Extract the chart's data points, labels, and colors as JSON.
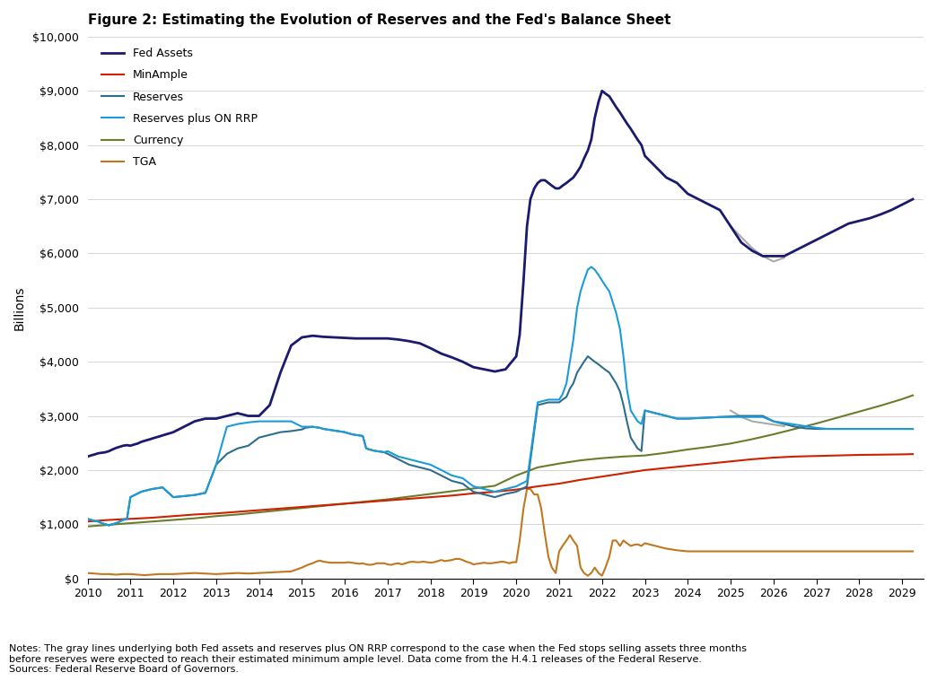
{
  "title": "Figure 2: Estimating the Evolution of Reserves and the Fed's Balance Sheet",
  "ylabel": "Billions",
  "ylim": [
    0,
    10000
  ],
  "yticks": [
    0,
    1000,
    2000,
    3000,
    4000,
    5000,
    6000,
    7000,
    8000,
    9000,
    10000
  ],
  "ytick_labels": [
    "$0",
    "$1,000",
    "$2,000",
    "$3,000",
    "$4,000",
    "$5,000",
    "$6,000",
    "$7,000",
    "$8,000",
    "$9,000",
    "$10,000"
  ],
  "xlim": [
    2010,
    2029.5
  ],
  "xticks": [
    2010,
    2011,
    2012,
    2013,
    2014,
    2015,
    2016,
    2017,
    2018,
    2019,
    2020,
    2021,
    2022,
    2023,
    2024,
    2025,
    2026,
    2027,
    2028,
    2029
  ],
  "notes": "Notes: The gray lines underlying both Fed assets and reserves plus ON RRP correspond to the case when the Fed stops selling assets three months\nbefore reserves were expected to reach their estimated minimum ample level. Data come from the H.4.1 releases of the Federal Reserve.\nSources: Federal Reserve Board of Governors.",
  "series": {
    "fed_assets": {
      "label": "Fed Assets",
      "color": "#1a1a6e",
      "linewidth": 2.0,
      "x": [
        2010.0,
        2010.08,
        2010.17,
        2010.25,
        2010.33,
        2010.42,
        2010.5,
        2010.58,
        2010.67,
        2010.75,
        2010.83,
        2010.92,
        2011.0,
        2011.08,
        2011.17,
        2011.25,
        2011.33,
        2011.42,
        2011.5,
        2011.58,
        2011.67,
        2011.75,
        2011.83,
        2011.92,
        2012.0,
        2012.25,
        2012.5,
        2012.75,
        2013.0,
        2013.25,
        2013.5,
        2013.75,
        2014.0,
        2014.25,
        2014.5,
        2014.75,
        2015.0,
        2015.25,
        2015.5,
        2015.75,
        2016.0,
        2016.25,
        2016.5,
        2016.75,
        2017.0,
        2017.25,
        2017.5,
        2017.75,
        2018.0,
        2018.25,
        2018.5,
        2018.75,
        2019.0,
        2019.25,
        2019.5,
        2019.75,
        2020.0,
        2020.08,
        2020.17,
        2020.25,
        2020.33,
        2020.42,
        2020.5,
        2020.58,
        2020.67,
        2020.75,
        2020.83,
        2020.92,
        2021.0,
        2021.08,
        2021.17,
        2021.25,
        2021.33,
        2021.42,
        2021.5,
        2021.58,
        2021.67,
        2021.75,
        2021.83,
        2021.92,
        2022.0,
        2022.08,
        2022.17,
        2022.25,
        2022.33,
        2022.42,
        2022.5,
        2022.58,
        2022.67,
        2022.75,
        2022.83,
        2022.92,
        2023.0,
        2023.25,
        2023.5,
        2023.75,
        2024.0,
        2024.25,
        2024.5,
        2024.75,
        2025.0,
        2025.25,
        2025.5,
        2025.75,
        2026.25,
        2026.5,
        2026.75,
        2027.0,
        2027.25,
        2027.5,
        2027.75,
        2028.0,
        2028.25,
        2028.5,
        2028.75,
        2029.0,
        2029.25
      ],
      "y": [
        2250,
        2270,
        2290,
        2310,
        2320,
        2330,
        2350,
        2380,
        2410,
        2430,
        2450,
        2460,
        2450,
        2470,
        2490,
        2520,
        2540,
        2560,
        2580,
        2600,
        2620,
        2640,
        2660,
        2680,
        2700,
        2800,
        2900,
        2950,
        2950,
        3000,
        3050,
        3000,
        3000,
        3200,
        3800,
        4300,
        4450,
        4480,
        4460,
        4450,
        4440,
        4430,
        4430,
        4430,
        4430,
        4410,
        4380,
        4340,
        4250,
        4150,
        4080,
        4000,
        3900,
        3860,
        3820,
        3860,
        4100,
        4500,
        5500,
        6500,
        7000,
        7200,
        7300,
        7350,
        7350,
        7300,
        7250,
        7200,
        7200,
        7250,
        7300,
        7350,
        7400,
        7500,
        7600,
        7750,
        7900,
        8100,
        8500,
        8800,
        9000,
        8950,
        8900,
        8800,
        8700,
        8600,
        8500,
        8400,
        8300,
        8200,
        8100,
        8000,
        7800,
        7600,
        7400,
        7300,
        7100,
        7000,
        6900,
        6800,
        6500,
        6200,
        6050,
        5950,
        5950,
        6050,
        6150,
        6250,
        6350,
        6450,
        6550,
        6600,
        6650,
        6720,
        6800,
        6900,
        7000
      ]
    },
    "fed_assets_gray": {
      "color": "#aaaaaa",
      "linewidth": 1.5,
      "x": [
        2025.0,
        2025.25,
        2025.5,
        2025.75,
        2026.0,
        2026.25
      ],
      "y": [
        6500,
        6300,
        6100,
        5950,
        5850,
        5920
      ]
    },
    "minample": {
      "label": "MinAmple",
      "color": "#cc2200",
      "linewidth": 1.5,
      "x": [
        2010.0,
        2010.5,
        2011.0,
        2011.5,
        2012.0,
        2012.5,
        2013.0,
        2013.5,
        2014.0,
        2014.5,
        2015.0,
        2015.5,
        2016.0,
        2016.5,
        2017.0,
        2017.5,
        2018.0,
        2018.5,
        2019.0,
        2019.5,
        2020.0,
        2020.5,
        2021.0,
        2021.5,
        2022.0,
        2022.5,
        2023.0,
        2023.5,
        2024.0,
        2024.5,
        2025.0,
        2025.5,
        2026.0,
        2026.5,
        2027.0,
        2027.5,
        2028.0,
        2028.5,
        2029.0,
        2029.25
      ],
      "y": [
        1050,
        1080,
        1100,
        1120,
        1150,
        1180,
        1200,
        1230,
        1260,
        1290,
        1320,
        1350,
        1380,
        1410,
        1440,
        1470,
        1500,
        1530,
        1570,
        1600,
        1640,
        1700,
        1750,
        1820,
        1880,
        1940,
        2000,
        2040,
        2080,
        2120,
        2160,
        2200,
        2230,
        2250,
        2260,
        2270,
        2280,
        2285,
        2290,
        2295
      ]
    },
    "reserves": {
      "label": "Reserves",
      "color": "#2e6d8e",
      "linewidth": 1.5,
      "x": [
        2010.0,
        2010.08,
        2010.17,
        2010.25,
        2010.33,
        2010.42,
        2010.5,
        2010.58,
        2010.67,
        2010.75,
        2010.83,
        2010.92,
        2011.0,
        2011.25,
        2011.5,
        2011.75,
        2012.0,
        2012.25,
        2012.5,
        2012.75,
        2013.0,
        2013.25,
        2013.5,
        2013.75,
        2014.0,
        2014.25,
        2014.5,
        2014.75,
        2015.0,
        2015.08,
        2015.17,
        2015.25,
        2015.33,
        2015.42,
        2015.5,
        2015.58,
        2015.67,
        2015.75,
        2015.83,
        2015.92,
        2016.0,
        2016.08,
        2016.17,
        2016.25,
        2016.33,
        2016.42,
        2016.5,
        2016.58,
        2016.67,
        2016.75,
        2016.83,
        2016.92,
        2017.0,
        2017.25,
        2017.5,
        2017.75,
        2018.0,
        2018.25,
        2018.5,
        2018.75,
        2019.0,
        2019.25,
        2019.5,
        2019.75,
        2020.0,
        2020.25,
        2020.5,
        2020.75,
        2021.0,
        2021.08,
        2021.17,
        2021.25,
        2021.33,
        2021.42,
        2021.5,
        2021.58,
        2021.67,
        2021.75,
        2021.83,
        2021.92,
        2022.0,
        2022.08,
        2022.17,
        2022.25,
        2022.33,
        2022.42,
        2022.5,
        2022.58,
        2022.67,
        2022.75,
        2022.83,
        2022.92,
        2023.0,
        2023.25,
        2023.5,
        2023.75,
        2024.0,
        2024.25,
        2024.5,
        2024.75,
        2025.0,
        2025.25,
        2025.5,
        2025.75,
        2026.0,
        2026.25,
        2026.5,
        2026.75,
        2027.0,
        2027.25,
        2027.5,
        2027.75,
        2028.0,
        2028.25,
        2028.5,
        2028.75,
        2029.0,
        2029.25
      ],
      "y": [
        1100,
        1080,
        1060,
        1050,
        1020,
        1000,
        980,
        1000,
        1020,
        1050,
        1080,
        1100,
        1500,
        1600,
        1650,
        1680,
        1500,
        1520,
        1540,
        1580,
        2100,
        2300,
        2400,
        2450,
        2600,
        2650,
        2700,
        2720,
        2750,
        2780,
        2790,
        2800,
        2790,
        2780,
        2760,
        2750,
        2740,
        2730,
        2720,
        2710,
        2700,
        2680,
        2660,
        2650,
        2640,
        2630,
        2400,
        2380,
        2360,
        2350,
        2340,
        2330,
        2300,
        2200,
        2100,
        2050,
        2000,
        1900,
        1800,
        1750,
        1600,
        1550,
        1500,
        1560,
        1600,
        1700,
        3200,
        3250,
        3250,
        3300,
        3350,
        3500,
        3600,
        3800,
        3900,
        4000,
        4100,
        4050,
        4000,
        3950,
        3900,
        3850,
        3800,
        3700,
        3600,
        3450,
        3200,
        2900,
        2600,
        2500,
        2400,
        2350,
        3100,
        3050,
        3000,
        2950,
        2950,
        2960,
        2970,
        2980,
        2990,
        3000,
        3000,
        3000,
        2900,
        2850,
        2800,
        2770,
        2760,
        2760,
        2760,
        2760,
        2760,
        2760,
        2760,
        2760,
        2760,
        2760
      ]
    },
    "reserves_plus": {
      "label": "Reserves plus ON RRP",
      "color": "#1b9cd8",
      "linewidth": 1.5,
      "x": [
        2010.0,
        2010.08,
        2010.17,
        2010.25,
        2010.33,
        2010.42,
        2010.5,
        2010.58,
        2010.67,
        2010.75,
        2010.83,
        2010.92,
        2011.0,
        2011.25,
        2011.5,
        2011.75,
        2012.0,
        2012.25,
        2012.5,
        2012.75,
        2013.0,
        2013.25,
        2013.5,
        2013.75,
        2014.0,
        2014.25,
        2014.5,
        2014.75,
        2015.0,
        2015.08,
        2015.17,
        2015.25,
        2015.33,
        2015.42,
        2015.5,
        2015.58,
        2015.67,
        2015.75,
        2015.83,
        2015.92,
        2016.0,
        2016.08,
        2016.17,
        2016.25,
        2016.33,
        2016.42,
        2016.5,
        2016.58,
        2016.67,
        2016.75,
        2016.83,
        2016.92,
        2017.0,
        2017.25,
        2017.5,
        2017.75,
        2018.0,
        2018.25,
        2018.5,
        2018.75,
        2019.0,
        2019.25,
        2019.5,
        2019.75,
        2020.0,
        2020.25,
        2020.5,
        2020.75,
        2021.0,
        2021.08,
        2021.17,
        2021.25,
        2021.33,
        2021.42,
        2021.5,
        2021.58,
        2021.67,
        2021.75,
        2021.83,
        2021.92,
        2022.0,
        2022.08,
        2022.17,
        2022.25,
        2022.33,
        2022.42,
        2022.5,
        2022.58,
        2022.67,
        2022.75,
        2022.83,
        2022.92,
        2023.0,
        2023.25,
        2023.5,
        2023.75,
        2024.0,
        2024.25,
        2024.5,
        2024.75,
        2025.75,
        2026.0,
        2026.25,
        2026.5,
        2026.75,
        2027.0,
        2027.25,
        2027.5,
        2027.75,
        2028.0,
        2028.25,
        2028.5,
        2028.75,
        2029.0,
        2029.25
      ],
      "y": [
        1100,
        1080,
        1060,
        1050,
        1020,
        1000,
        980,
        1000,
        1020,
        1050,
        1080,
        1100,
        1500,
        1600,
        1650,
        1680,
        1500,
        1520,
        1540,
        1580,
        2100,
        2800,
        2850,
        2880,
        2900,
        2900,
        2900,
        2900,
        2800,
        2800,
        2800,
        2800,
        2790,
        2780,
        2760,
        2750,
        2740,
        2730,
        2720,
        2710,
        2700,
        2680,
        2660,
        2650,
        2640,
        2630,
        2400,
        2380,
        2360,
        2350,
        2340,
        2330,
        2350,
        2250,
        2200,
        2150,
        2100,
        2000,
        1900,
        1850,
        1700,
        1650,
        1600,
        1650,
        1700,
        1800,
        3250,
        3300,
        3300,
        3400,
        3600,
        4000,
        4400,
        5000,
        5300,
        5500,
        5700,
        5750,
        5700,
        5600,
        5500,
        5400,
        5300,
        5100,
        4900,
        4600,
        4100,
        3500,
        3100,
        3000,
        2900,
        2850,
        3100,
        3050,
        3000,
        2950,
        2950,
        2960,
        2970,
        2980,
        2980,
        2900,
        2870,
        2840,
        2810,
        2780,
        2760,
        2760,
        2760,
        2760,
        2760,
        2760,
        2760,
        2760,
        2760
      ]
    },
    "reserves_plus_gray": {
      "color": "#aaaaaa",
      "linewidth": 1.5,
      "x": [
        2025.0,
        2025.25,
        2025.5,
        2025.75,
        2026.0,
        2026.25
      ],
      "y": [
        3100,
        2980,
        2900,
        2870,
        2840,
        2810
      ]
    },
    "currency": {
      "label": "Currency",
      "color": "#6b7c2b",
      "linewidth": 1.5,
      "x": [
        2010.0,
        2010.5,
        2011.0,
        2011.5,
        2012.0,
        2012.5,
        2013.0,
        2013.5,
        2014.0,
        2014.5,
        2015.0,
        2015.5,
        2016.0,
        2016.5,
        2017.0,
        2017.5,
        2018.0,
        2018.5,
        2019.0,
        2019.5,
        2020.0,
        2020.5,
        2021.0,
        2021.5,
        2022.0,
        2022.5,
        2023.0,
        2023.5,
        2024.0,
        2024.5,
        2025.0,
        2025.5,
        2026.0,
        2026.5,
        2027.0,
        2027.5,
        2028.0,
        2028.5,
        2029.0,
        2029.25
      ],
      "y": [
        960,
        990,
        1020,
        1050,
        1080,
        1110,
        1150,
        1180,
        1220,
        1260,
        1300,
        1340,
        1380,
        1420,
        1460,
        1510,
        1560,
        1610,
        1660,
        1710,
        1900,
        2050,
        2120,
        2180,
        2220,
        2250,
        2270,
        2320,
        2380,
        2430,
        2490,
        2570,
        2660,
        2760,
        2860,
        2970,
        3080,
        3190,
        3310,
        3380
      ]
    },
    "tga": {
      "label": "TGA",
      "color": "#c07820",
      "linewidth": 1.5,
      "x": [
        2010.0,
        2010.17,
        2010.33,
        2010.5,
        2010.67,
        2010.83,
        2011.0,
        2011.17,
        2011.33,
        2011.5,
        2011.67,
        2011.83,
        2012.0,
        2012.25,
        2012.5,
        2012.75,
        2013.0,
        2013.25,
        2013.5,
        2013.75,
        2014.0,
        2014.25,
        2014.5,
        2014.75,
        2015.0,
        2015.08,
        2015.17,
        2015.25,
        2015.33,
        2015.42,
        2015.5,
        2015.58,
        2015.67,
        2015.75,
        2015.83,
        2015.92,
        2016.0,
        2016.08,
        2016.17,
        2016.25,
        2016.33,
        2016.42,
        2016.5,
        2016.58,
        2016.67,
        2016.75,
        2016.83,
        2016.92,
        2017.0,
        2017.08,
        2017.17,
        2017.25,
        2017.33,
        2017.42,
        2017.5,
        2017.58,
        2017.67,
        2017.75,
        2017.83,
        2017.92,
        2018.0,
        2018.08,
        2018.17,
        2018.25,
        2018.33,
        2018.42,
        2018.5,
        2018.58,
        2018.67,
        2018.75,
        2018.83,
        2018.92,
        2019.0,
        2019.08,
        2019.17,
        2019.25,
        2019.33,
        2019.42,
        2019.5,
        2019.58,
        2019.67,
        2019.75,
        2019.83,
        2019.92,
        2020.0,
        2020.08,
        2020.17,
        2020.25,
        2020.33,
        2020.42,
        2020.5,
        2020.58,
        2020.67,
        2020.75,
        2020.83,
        2020.92,
        2021.0,
        2021.08,
        2021.17,
        2021.25,
        2021.33,
        2021.42,
        2021.5,
        2021.58,
        2021.67,
        2021.75,
        2021.83,
        2021.92,
        2022.0,
        2022.08,
        2022.17,
        2022.25,
        2022.33,
        2022.42,
        2022.5,
        2022.58,
        2022.67,
        2022.75,
        2022.83,
        2022.92,
        2023.0,
        2023.25,
        2023.5,
        2023.75,
        2024.0,
        2024.25,
        2024.5,
        2024.75,
        2025.0,
        2025.25,
        2025.5,
        2025.75,
        2026.0,
        2026.5,
        2027.0,
        2027.5,
        2028.0,
        2028.5,
        2029.0,
        2029.25
      ],
      "y": [
        100,
        90,
        80,
        80,
        70,
        80,
        80,
        70,
        60,
        70,
        80,
        80,
        80,
        90,
        100,
        90,
        80,
        90,
        100,
        90,
        100,
        110,
        120,
        130,
        200,
        230,
        260,
        280,
        310,
        330,
        310,
        300,
        290,
        290,
        290,
        290,
        290,
        300,
        290,
        280,
        270,
        280,
        260,
        250,
        260,
        280,
        280,
        280,
        260,
        250,
        270,
        280,
        260,
        280,
        300,
        310,
        300,
        300,
        310,
        300,
        290,
        300,
        320,
        340,
        320,
        330,
        340,
        360,
        360,
        340,
        310,
        290,
        260,
        270,
        280,
        290,
        280,
        280,
        290,
        300,
        310,
        300,
        280,
        300,
        300,
        700,
        1300,
        1650,
        1650,
        1550,
        1550,
        1300,
        800,
        400,
        200,
        100,
        500,
        600,
        700,
        800,
        700,
        600,
        200,
        100,
        50,
        100,
        200,
        100,
        50,
        200,
        400,
        700,
        700,
        600,
        700,
        650,
        600,
        620,
        630,
        600,
        650,
        600,
        550,
        520,
        500,
        500,
        500,
        500,
        500,
        500,
        500,
        500,
        500,
        500,
        500,
        500,
        500,
        500,
        500,
        500
      ]
    }
  }
}
